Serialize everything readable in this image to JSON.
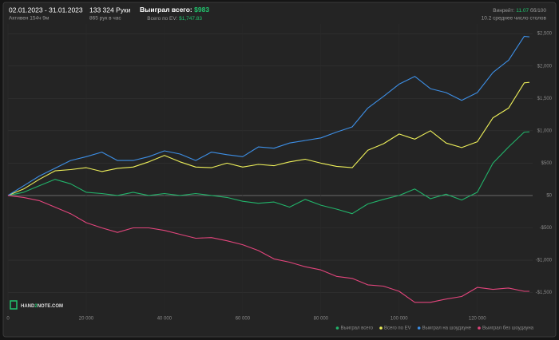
{
  "chart_data": {
    "type": "line",
    "header": {
      "period": "02.01.2023 - 31.01.2023",
      "active": "Активен 154ч 9м",
      "hands": "133 324 Руки",
      "rate": "865 рук в час",
      "won_label": "Выиграл всего:",
      "won": "$983",
      "ev_label": "Всего по EV:",
      "ev": "$1,747.83",
      "winrate_label": "Винрейт:",
      "winrate": "11.07",
      "winrate_unit": "бб/100",
      "tables": "10.2 среднее число столов"
    },
    "watermark": [
      "HAND",
      "2",
      "NOTE.COM"
    ],
    "x": [
      0,
      4000,
      8000,
      12000,
      16000,
      20000,
      24000,
      28000,
      32000,
      36000,
      40000,
      44000,
      48000,
      52000,
      56000,
      60000,
      64000,
      68000,
      72000,
      76000,
      80000,
      84000,
      88000,
      92000,
      96000,
      100000,
      104000,
      108000,
      112000,
      116000,
      120000,
      124000,
      128000,
      132000,
      133324
    ],
    "series": [
      {
        "name": "Выиграл всего",
        "color": "#22b36a",
        "values": [
          0,
          50,
          150,
          250,
          180,
          50,
          30,
          0,
          50,
          0,
          30,
          0,
          30,
          0,
          -30,
          -90,
          -120,
          -100,
          -180,
          -60,
          -150,
          -210,
          -280,
          -130,
          -60,
          0,
          100,
          -50,
          20,
          -70,
          50,
          500,
          750,
          980,
          983
        ]
      },
      {
        "name": "Всего по EV",
        "color": "#eef05a",
        "values": [
          0,
          100,
          250,
          380,
          400,
          430,
          370,
          420,
          440,
          520,
          620,
          520,
          440,
          430,
          500,
          440,
          480,
          460,
          520,
          560,
          500,
          450,
          430,
          700,
          800,
          950,
          870,
          1000,
          810,
          740,
          830,
          1200,
          1350,
          1740,
          1748
        ]
      },
      {
        "name": "Выиграл на шоудауне",
        "color": "#3d8fe6",
        "values": [
          0,
          150,
          300,
          420,
          540,
          600,
          670,
          540,
          540,
          600,
          690,
          640,
          540,
          670,
          630,
          600,
          750,
          730,
          810,
          850,
          890,
          980,
          1060,
          1350,
          1530,
          1720,
          1840,
          1650,
          1590,
          1470,
          1590,
          1900,
          2090,
          2460,
          2450
        ]
      },
      {
        "name": "Выиграл без шоудауна",
        "color": "#e2457c",
        "values": [
          0,
          -30,
          -80,
          -180,
          -280,
          -420,
          -500,
          -570,
          -500,
          -500,
          -540,
          -600,
          -660,
          -650,
          -700,
          -760,
          -850,
          -980,
          -1030,
          -1100,
          -1150,
          -1250,
          -1280,
          -1380,
          -1400,
          -1480,
          -1650,
          -1650,
          -1600,
          -1560,
          -1420,
          -1450,
          -1430,
          -1480,
          -1480
        ]
      }
    ],
    "xlim": [
      0,
      133324
    ],
    "xticks": [
      0,
      {
        "value": 20000,
        "label": "20 000"
      },
      {
        "value": 40000,
        "label": "40 000"
      },
      {
        "value": 60000,
        "label": "60 000"
      },
      {
        "value": 80000,
        "label": "80 000"
      },
      {
        "value": 100000,
        "label": "100 000"
      },
      {
        "value": 120000,
        "label": "120 000"
      }
    ],
    "ylim": [
      -1850,
      2650
    ],
    "yticks": [
      {
        "value": -1500,
        "label": "-$1,500"
      },
      {
        "value": -1000,
        "label": "-$1,000"
      },
      {
        "value": -500,
        "label": "-$500"
      },
      {
        "value": 0,
        "label": "$0"
      },
      {
        "value": 500,
        "label": "$500"
      },
      {
        "value": 1000,
        "label": "$1,000"
      },
      {
        "value": 1500,
        "label": "$1,500"
      },
      {
        "value": 2000,
        "label": "$2,000"
      },
      {
        "value": 2500,
        "label": "$2,500"
      }
    ],
    "grid": true,
    "legend": "bottom-right"
  }
}
